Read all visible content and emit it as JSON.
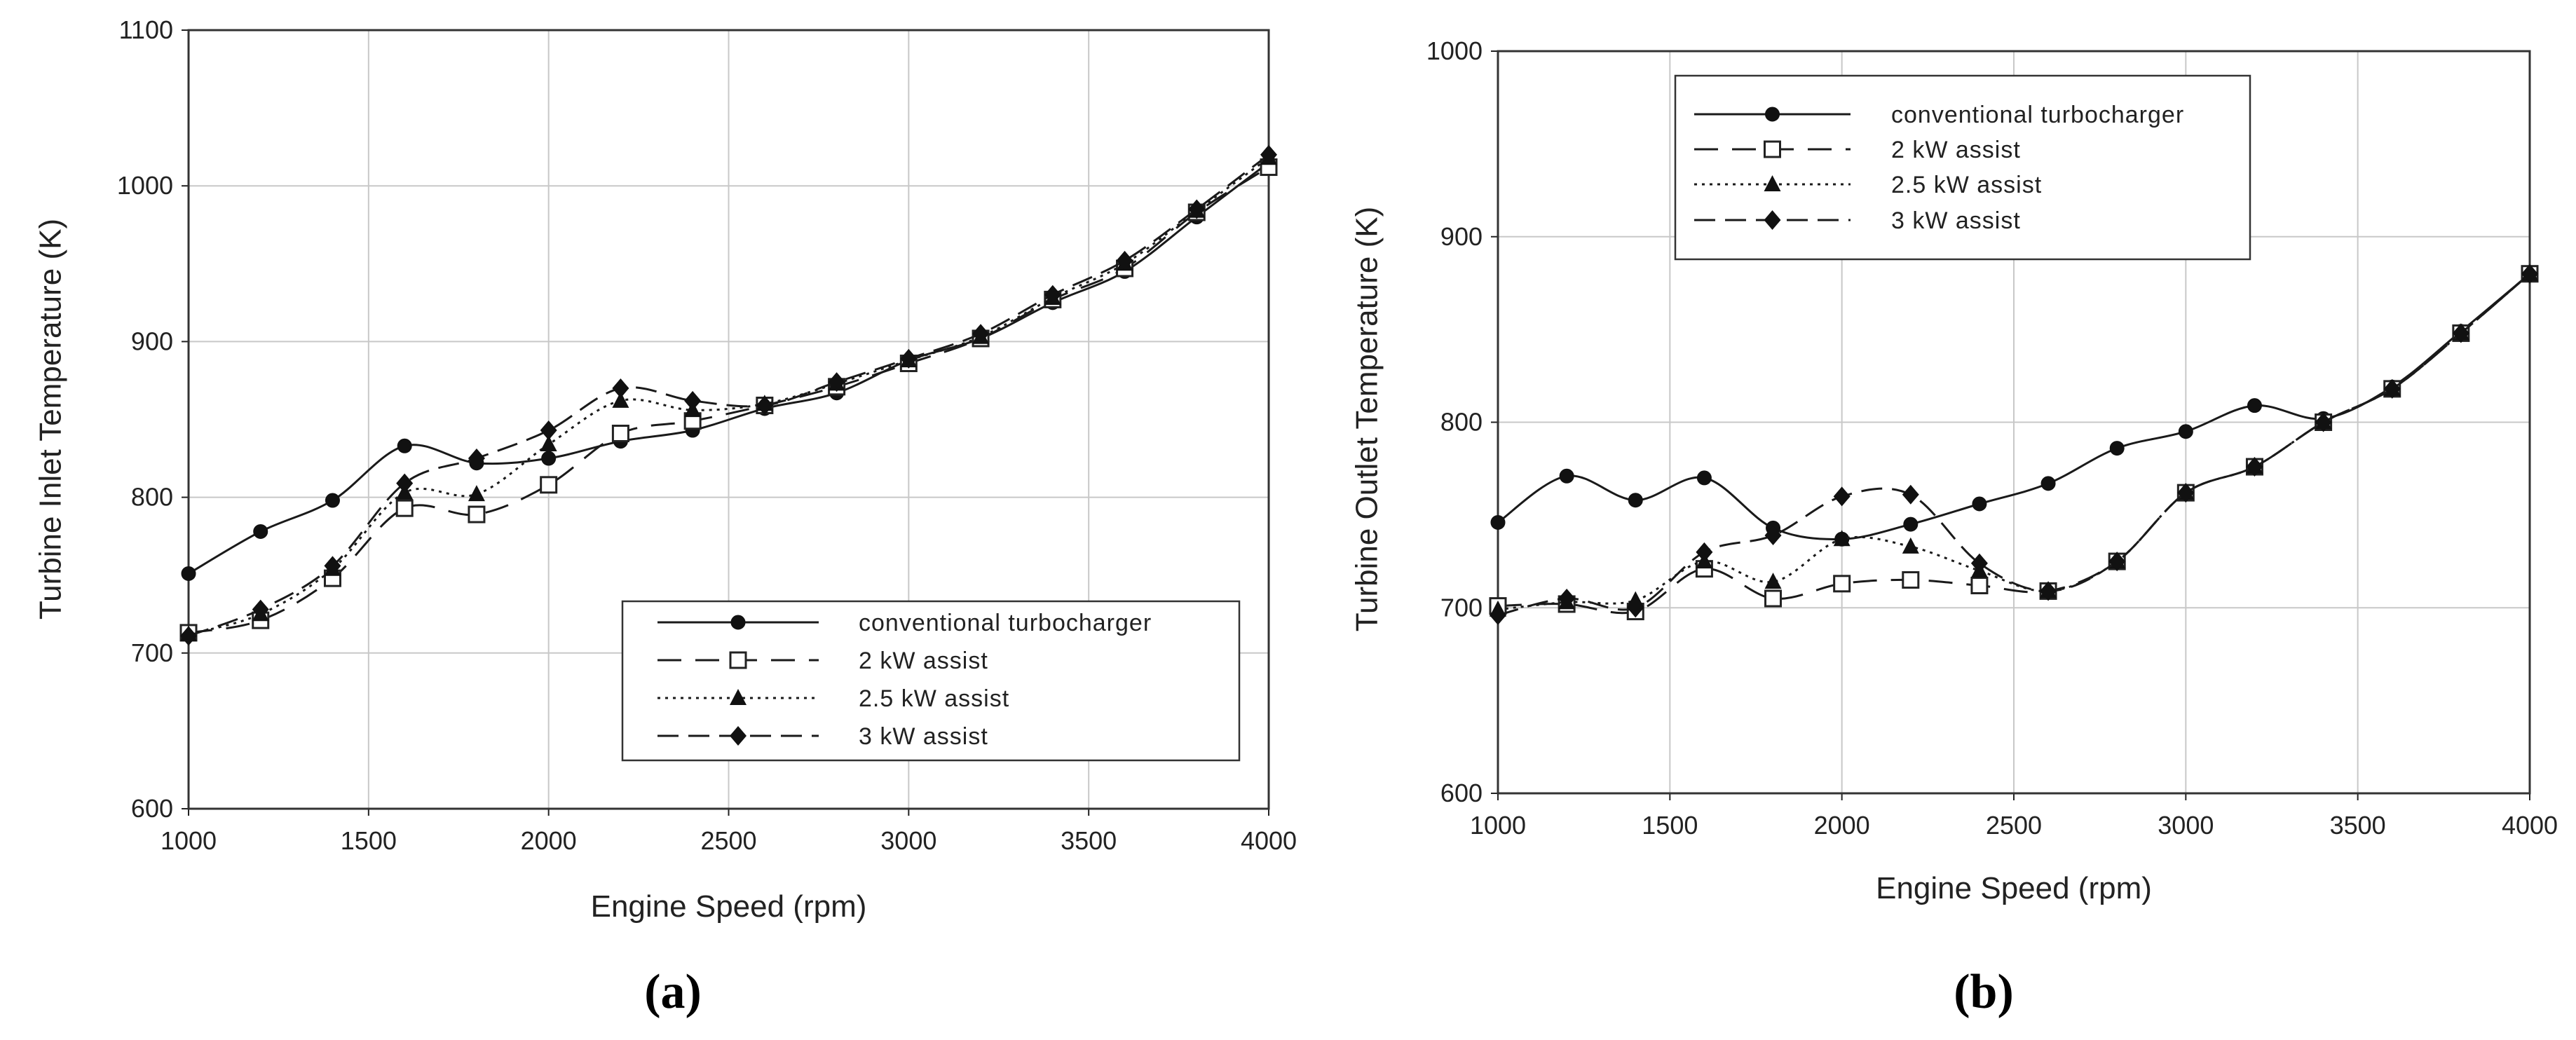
{
  "chart_data": [
    {
      "type": "line",
      "caption": "(a)",
      "xlabel": "Engine Speed (rpm)",
      "ylabel": "Turbine Inlet Temperature (K)",
      "xlim": [
        1000,
        4000
      ],
      "ylim": [
        600,
        1100
      ],
      "xticks": [
        "1000",
        "1500",
        "2000",
        "2500",
        "3000",
        "3500",
        "4000"
      ],
      "yticks": [
        "600",
        "700",
        "800",
        "900",
        "1000",
        "1100"
      ],
      "grid": true,
      "legend_position": "bottom-right",
      "x": [
        1000,
        1200,
        1400,
        1600,
        1800,
        2000,
        2200,
        2400,
        2600,
        2800,
        3000,
        3200,
        3400,
        3600,
        3800,
        4000
      ],
      "series": [
        {
          "name": "conventional turbocharger",
          "marker": "circle",
          "dash": "solid",
          "values": [
            751,
            778,
            798,
            833,
            822,
            825,
            836,
            843,
            857,
            867,
            888,
            902,
            925,
            945,
            980,
            1015
          ]
        },
        {
          "name": "2 kW assist",
          "marker": "open-square",
          "dash": "longdash",
          "values": [
            713,
            721,
            748,
            793,
            789,
            808,
            841,
            849,
            859,
            871,
            886,
            902,
            927,
            947,
            983,
            1012
          ]
        },
        {
          "name": "2.5 kW assist",
          "marker": "triangle",
          "dash": "dotted",
          "values": [
            712,
            725,
            754,
            803,
            802,
            834,
            862,
            856,
            860,
            873,
            888,
            903,
            928,
            950,
            984,
            1018
          ]
        },
        {
          "name": "3 kW assist",
          "marker": "diamond",
          "dash": "dashed",
          "values": [
            711,
            728,
            756,
            809,
            825,
            843,
            870,
            862,
            859,
            874,
            889,
            905,
            930,
            952,
            985,
            1020
          ]
        }
      ]
    },
    {
      "type": "line",
      "caption": "(b)",
      "xlabel": "Engine Speed (rpm)",
      "ylabel": "Turbine Outlet Temperature (K)",
      "xlim": [
        1000,
        4000
      ],
      "ylim": [
        600,
        1000
      ],
      "xticks": [
        "1000",
        "1500",
        "2000",
        "2500",
        "3000",
        "3500",
        "4000"
      ],
      "yticks": [
        "600",
        "700",
        "800",
        "900",
        "1000"
      ],
      "grid": true,
      "legend_position": "top-left",
      "x": [
        1000,
        1200,
        1400,
        1600,
        1800,
        2000,
        2200,
        2400,
        2600,
        2800,
        3000,
        3200,
        3400,
        3600,
        3800,
        4000
      ],
      "series": [
        {
          "name": "conventional turbocharger",
          "marker": "circle",
          "dash": "solid",
          "values": [
            746,
            771,
            758,
            770,
            743,
            737,
            745,
            756,
            767,
            786,
            795,
            809,
            802,
            819,
            849,
            880
          ]
        },
        {
          "name": "2 kW assist",
          "marker": "open-square",
          "dash": "longdash",
          "values": [
            701,
            702,
            698,
            721,
            705,
            713,
            715,
            712,
            709,
            725,
            762,
            776,
            800,
            818,
            848,
            880
          ]
        },
        {
          "name": "2.5 kW assist",
          "marker": "triangle",
          "dash": "dotted",
          "values": [
            699,
            703,
            704,
            725,
            714,
            737,
            733,
            720,
            709,
            725,
            762,
            776,
            800,
            818,
            848,
            880
          ]
        },
        {
          "name": "3 kW assist",
          "marker": "diamond",
          "dash": "dashed",
          "values": [
            696,
            705,
            700,
            730,
            739,
            760,
            761,
            724,
            709,
            725,
            762,
            776,
            800,
            818,
            848,
            880
          ]
        }
      ]
    }
  ]
}
